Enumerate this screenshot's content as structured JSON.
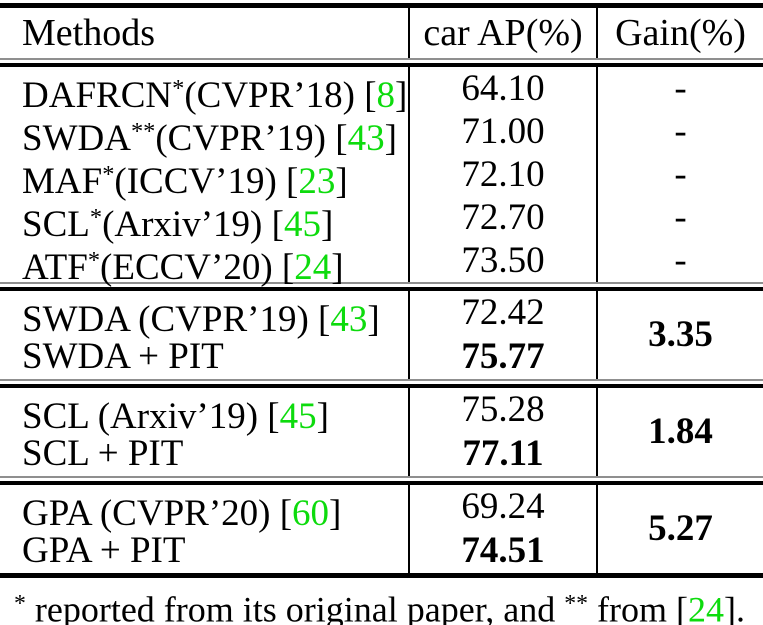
{
  "table": {
    "header": {
      "methods": "Methods",
      "ap": "car AP(%)",
      "gain": "Gain(%)"
    },
    "accent_green": "#0ddb0d",
    "sections": [
      {
        "rows": [
          {
            "name": "DAFRCN",
            "sup": "*",
            "venue": "(CVPR’18)",
            "br_open": " [",
            "cite": "8",
            "br_close": "]",
            "ap": "64.10",
            "gain": "-"
          },
          {
            "name": "SWDA",
            "sup": "**",
            "venue": "(CVPR’19)",
            "br_open": " [",
            "cite": "43",
            "br_close": "]",
            "ap": "71.00",
            "gain": "-"
          },
          {
            "name": "MAF",
            "sup": "*",
            "venue": "(ICCV’19)",
            "br_open": " [",
            "cite": "23",
            "br_close": "]",
            "ap": "72.10",
            "gain": "-"
          },
          {
            "name": "SCL",
            "sup": "*",
            "venue": "(Arxiv’19)",
            "br_open": " [",
            "cite": "45",
            "br_close": "]",
            "ap": "72.70",
            "gain": "-"
          },
          {
            "name": "ATF",
            "sup": "*",
            "venue": "(ECCV’20)",
            "br_open": " [",
            "cite": "24",
            "br_close": "]",
            "ap": "73.50",
            "gain": "-"
          }
        ]
      },
      {
        "rows": [
          {
            "name": "SWDA ",
            "sup": "",
            "venue": "(CVPR’19)",
            "br_open": " [",
            "cite": "43",
            "br_close": "]",
            "ap": "72.42"
          },
          {
            "name": "SWDA + PIT",
            "sup": "",
            "venue": "",
            "br_open": "",
            "cite": "",
            "br_close": "",
            "ap": "75.77"
          }
        ],
        "gain": "3.35"
      },
      {
        "rows": [
          {
            "name": "SCL ",
            "sup": "",
            "venue": "(Arxiv’19)",
            "br_open": " [",
            "cite": "45",
            "br_close": "]",
            "ap": "75.28"
          },
          {
            "name": "SCL + PIT",
            "sup": "",
            "venue": "",
            "br_open": "",
            "cite": "",
            "br_close": "",
            "ap": "77.11"
          }
        ],
        "gain": "1.84"
      },
      {
        "rows": [
          {
            "name": "GPA ",
            "sup": "",
            "venue": "(CVPR’20)",
            "br_open": " [",
            "cite": "60",
            "br_close": "]",
            "ap": "69.24"
          },
          {
            "name": "GPA + PIT",
            "sup": "",
            "venue": "",
            "br_open": "",
            "cite": "",
            "br_close": "",
            "ap": "74.51"
          }
        ],
        "gain": "5.27"
      }
    ],
    "footnote": {
      "sup1": "*",
      "text1": " reported from its original paper, and ",
      "sup2": "**",
      "text2": " from ",
      "br_open": "[",
      "cite": "24",
      "tail": "]."
    }
  }
}
